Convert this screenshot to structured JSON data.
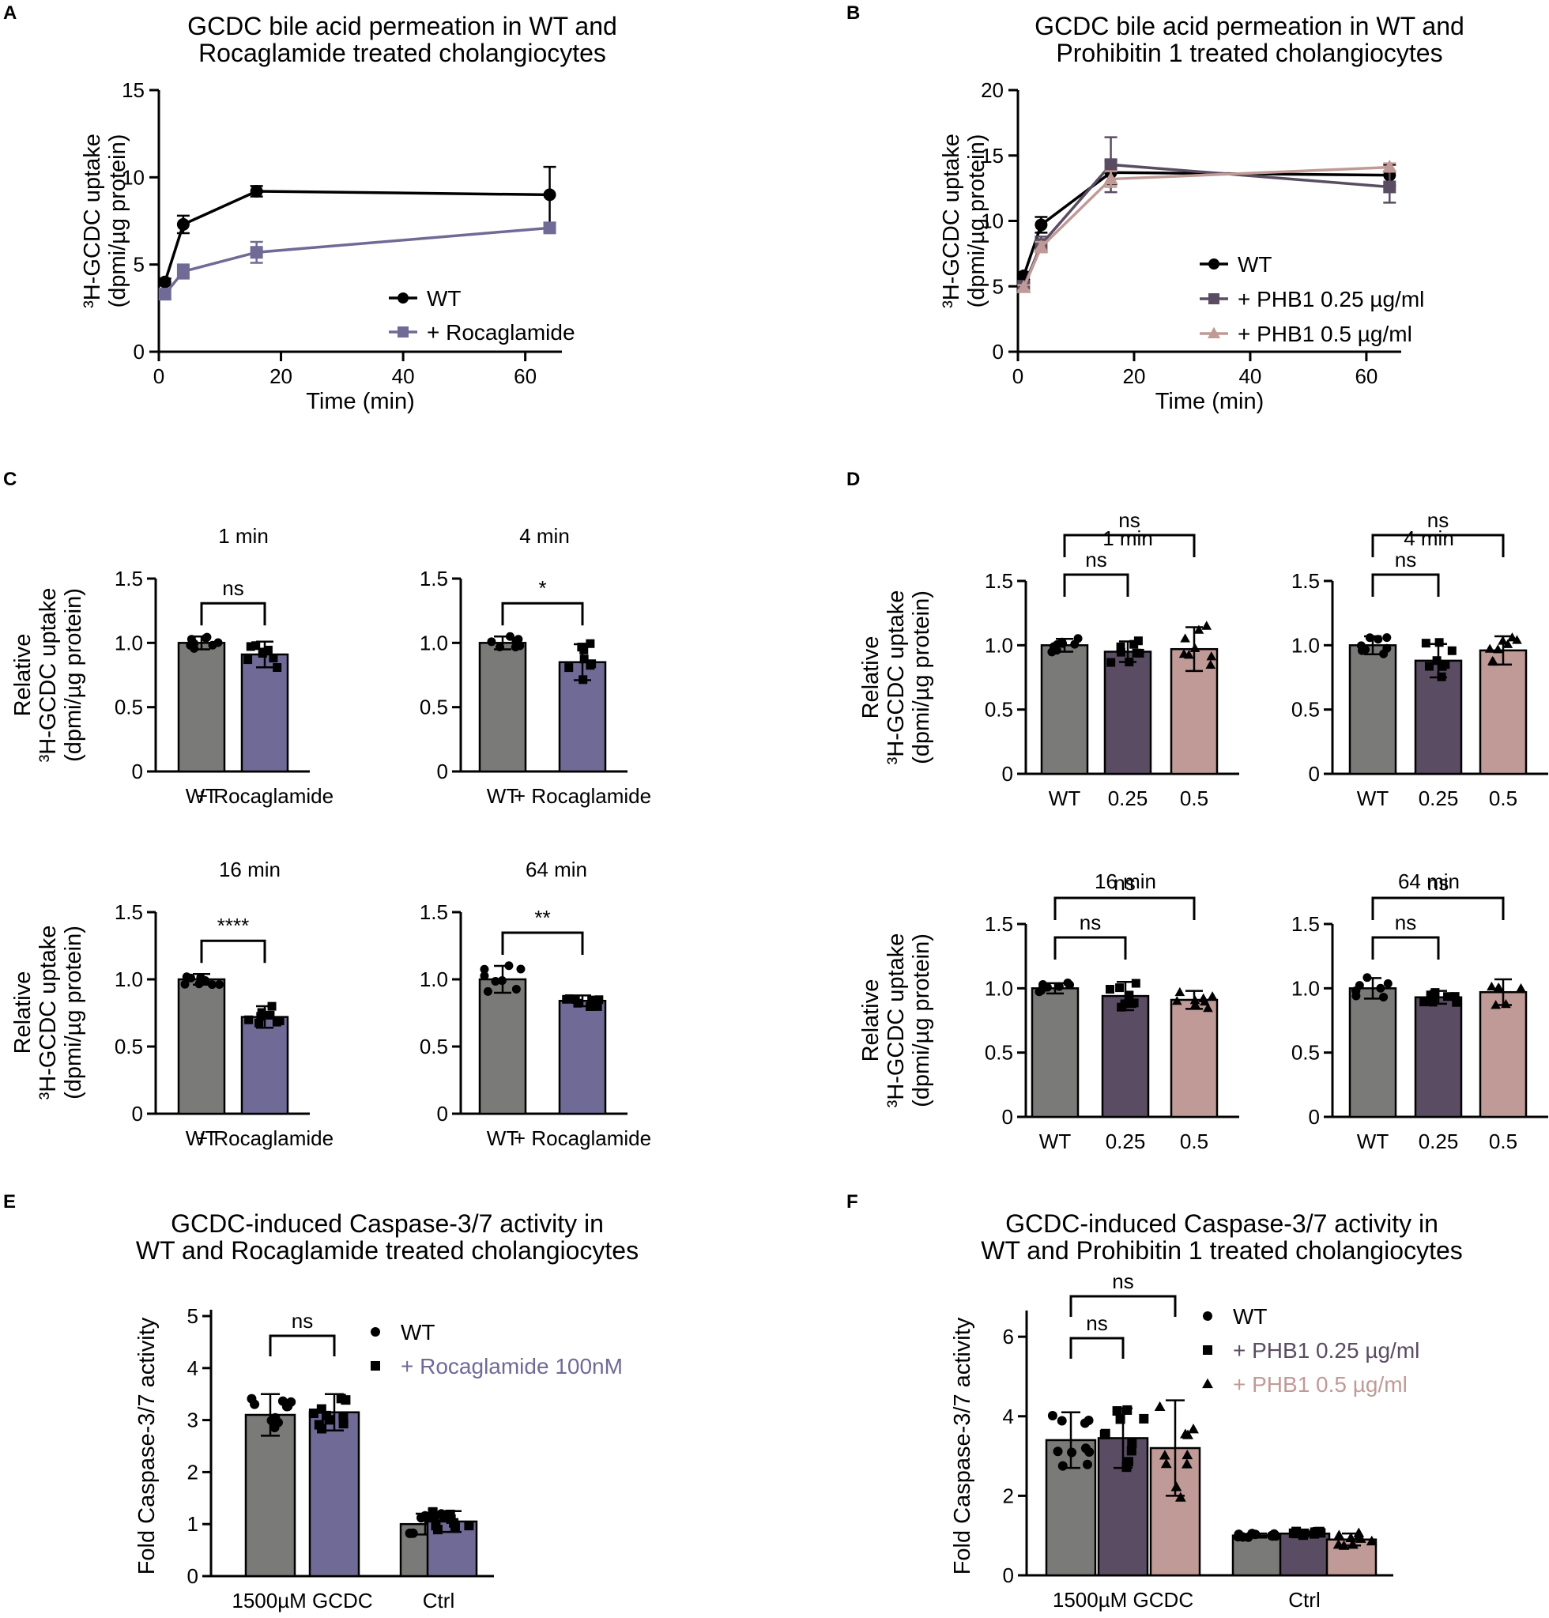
{
  "colors": {
    "wt": "#7a7a78",
    "roca": "#6f6a96",
    "phb025": "#5a4c62",
    "phb05": "#c09a96",
    "black": "#000000"
  },
  "panels": {
    "A": "A",
    "B": "B",
    "C": "C",
    "D": "D",
    "E": "E",
    "F": "F"
  },
  "chart_data": [
    {
      "id": "A",
      "type": "line",
      "title": [
        "GCDC bile acid permeation in WT and",
        "Rocaglamide treated cholangiocytes"
      ],
      "xlabel": "Time (min)",
      "ylabel": [
        "³H-GCDC uptake",
        "(dpmi/µg protein)"
      ],
      "xlim": [
        0,
        66
      ],
      "ylim": [
        0,
        15
      ],
      "xticks": [
        0,
        20,
        40,
        60
      ],
      "yticks": [
        0,
        5,
        10,
        15
      ],
      "x": [
        1,
        4,
        16,
        64
      ],
      "series": [
        {
          "name": "WT",
          "marker": "circle",
          "color": "#000000",
          "values": [
            4.0,
            7.3,
            9.2,
            9.0
          ],
          "err": [
            0.2,
            0.5,
            0.3,
            1.6
          ]
        },
        {
          "name": "+ Rocaglamide",
          "marker": "square",
          "color": "#6f6a96",
          "values": [
            3.3,
            4.6,
            5.7,
            7.1
          ],
          "err": [
            0.3,
            0.4,
            0.6,
            0.2
          ]
        }
      ]
    },
    {
      "id": "B",
      "type": "line",
      "title": [
        "GCDC bile acid permeation in WT and",
        "Prohibitin 1 treated cholangiocytes"
      ],
      "xlabel": "Time (min)",
      "ylabel": [
        "³H-GCDC uptake",
        "(dpmi/µg protein)"
      ],
      "xlim": [
        0,
        66
      ],
      "ylim": [
        0,
        20
      ],
      "xticks": [
        0,
        20,
        40,
        60
      ],
      "yticks": [
        0,
        5,
        10,
        15,
        20
      ],
      "x": [
        1,
        4,
        16,
        64
      ],
      "series": [
        {
          "name": "WT",
          "marker": "circle",
          "color": "#000000",
          "values": [
            5.8,
            9.7,
            13.7,
            13.5
          ],
          "err": [
            0.3,
            0.6,
            0.9,
            0.8
          ]
        },
        {
          "name": "+ PHB1 0.25 µg/ml",
          "marker": "square",
          "color": "#5a4c62",
          "values": [
            5.0,
            8.2,
            14.3,
            12.6
          ],
          "err": [
            0.3,
            0.6,
            2.1,
            1.2
          ]
        },
        {
          "name": "+ PHB1 0.5 µg/ml",
          "marker": "triangle",
          "color": "#c09a96",
          "values": [
            4.9,
            8.0,
            13.2,
            14.1
          ],
          "err": [
            0.2,
            0.4,
            0.6,
            0.3
          ]
        }
      ]
    },
    {
      "id": "C",
      "type": "bar",
      "ylabel": [
        "Relative",
        "³H-GCDC uptake",
        "(dpmi/µg protein)"
      ],
      "ylim": [
        0,
        1.5
      ],
      "yticks": [
        "0",
        "0.5",
        "1.0",
        "1.5"
      ],
      "categories": [
        "WT",
        "+ Rocaglamide"
      ],
      "subplots": [
        {
          "title": "1 min",
          "values": [
            1.0,
            0.91
          ],
          "err": [
            0.05,
            0.1
          ],
          "sig": [
            "ns"
          ]
        },
        {
          "title": "4 min",
          "values": [
            1.0,
            0.85
          ],
          "err": [
            0.05,
            0.14
          ],
          "sig": [
            "*"
          ]
        },
        {
          "title": "16 min",
          "values": [
            1.0,
            0.72
          ],
          "err": [
            0.04,
            0.08
          ],
          "sig": [
            "****"
          ]
        },
        {
          "title": "64 min",
          "values": [
            1.0,
            0.84
          ],
          "err": [
            0.1,
            0.04
          ],
          "sig": [
            "**"
          ]
        }
      ]
    },
    {
      "id": "D",
      "type": "bar",
      "ylabel": [
        "Relative",
        "³H-GCDC uptake",
        "(dpmi/µg protein)"
      ],
      "ylim": [
        0,
        1.5
      ],
      "yticks": [
        "0",
        "0.5",
        "1.0",
        "1.5"
      ],
      "categories": [
        "WT",
        "0.25",
        "0.5"
      ],
      "subplots": [
        {
          "title": "1 min",
          "values": [
            1.0,
            0.95,
            0.97
          ],
          "err": [
            0.05,
            0.08,
            0.17
          ],
          "sig": [
            "ns",
            "ns"
          ]
        },
        {
          "title": "4 min",
          "values": [
            1.0,
            0.88,
            0.96
          ],
          "err": [
            0.07,
            0.13,
            0.11
          ],
          "sig": [
            "ns",
            "ns"
          ]
        },
        {
          "title": "16 min",
          "values": [
            1.0,
            0.94,
            0.91
          ],
          "err": [
            0.04,
            0.11,
            0.07
          ],
          "sig": [
            "ns",
            "ns"
          ]
        },
        {
          "title": "64 min",
          "values": [
            1.0,
            0.93,
            0.97
          ],
          "err": [
            0.08,
            0.05,
            0.1
          ],
          "sig": [
            "ns",
            "ns"
          ]
        }
      ]
    },
    {
      "id": "E",
      "type": "bar",
      "title": [
        "GCDC-induced Caspase-3/7 activity in",
        "WT and Rocaglamide treated cholangiocytes"
      ],
      "ylabel": "Fold Caspase-3/7 activity",
      "ylim": [
        0,
        5
      ],
      "yticks": [
        "0",
        "1",
        "2",
        "3",
        "4",
        "5"
      ],
      "groups": [
        "1500µM GCDC",
        "Ctrl"
      ],
      "series": [
        {
          "name": "WT",
          "values": [
            3.1,
            1.0
          ],
          "err": [
            0.4,
            0.2
          ]
        },
        {
          "name": "+ Rocaglamide 100nM",
          "values": [
            3.15,
            1.05
          ],
          "err": [
            0.35,
            0.2
          ]
        }
      ],
      "sig": [
        "ns"
      ]
    },
    {
      "id": "F",
      "type": "bar",
      "title": [
        "GCDC-induced Caspase-3/7 activity in",
        "WT and Prohibitin 1 treated cholangiocytes"
      ],
      "ylabel": "Fold Caspase-3/7 activity",
      "ylim": [
        0,
        6.5
      ],
      "yticks": [
        "0",
        "2",
        "4",
        "6"
      ],
      "groups": [
        "1500µM GCDC",
        "Ctrl"
      ],
      "series": [
        {
          "name": "WT",
          "values": [
            3.4,
            1.0
          ],
          "err": [
            0.7,
            0.05
          ]
        },
        {
          "name": "+ PHB1 0.25 µg/ml",
          "values": [
            3.45,
            1.05
          ],
          "err": [
            0.75,
            0.05
          ]
        },
        {
          "name": "+ PHB1 0.5 µg/ml",
          "values": [
            3.2,
            0.9
          ],
          "err": [
            1.2,
            0.15
          ]
        }
      ],
      "sig": [
        "ns",
        "ns"
      ]
    }
  ]
}
